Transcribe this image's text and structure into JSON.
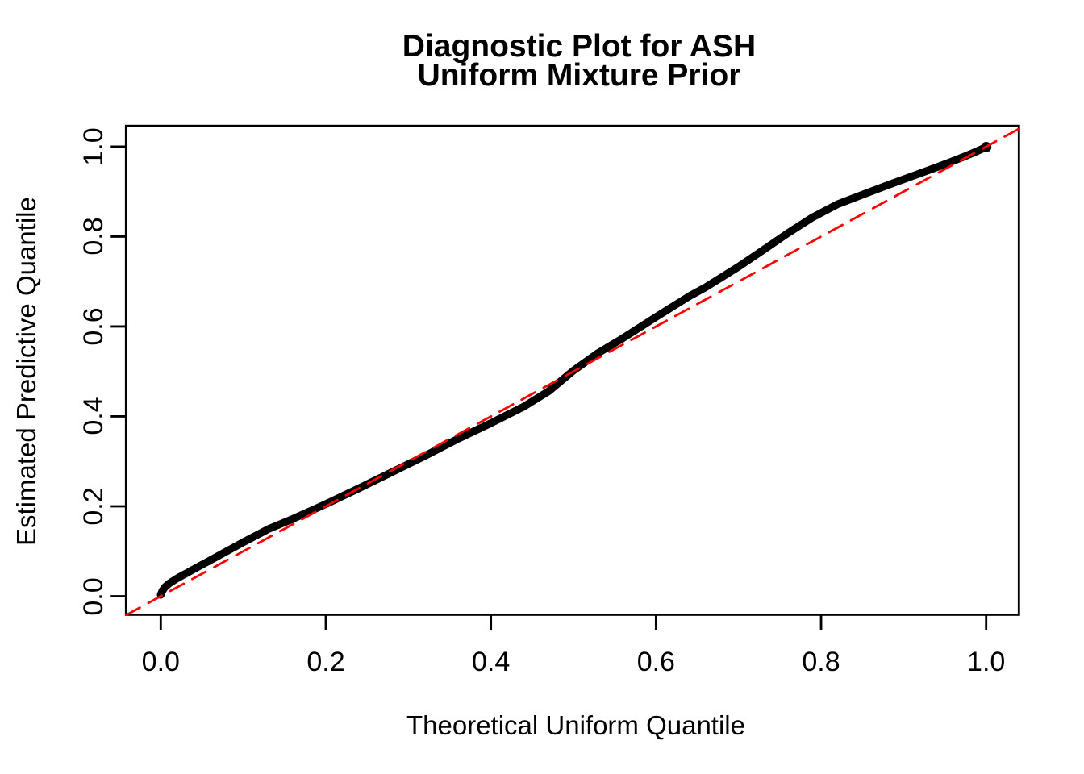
{
  "title": {
    "line1": "Diagnostic Plot for ASH",
    "line2": "Uniform Mixture Prior"
  },
  "colors": {
    "background": "#FFFFFF",
    "axis": "#000000",
    "curve": "#000000",
    "reference": "#FF0000"
  },
  "chart_data": {
    "type": "line",
    "title": "Diagnostic Plot for ASH\nUniform Mixture Prior",
    "xlabel": "Theoretical Uniform Quantile",
    "ylabel": "Estimated Predictive Quantile",
    "xlim": [
      -0.0416,
      1.0416
    ],
    "ylim": [
      -0.0416,
      1.0416
    ],
    "grid": false,
    "legend": "none",
    "x_ticks": {
      "values": [
        0.0,
        0.2,
        0.4,
        0.6,
        0.8,
        1.0
      ],
      "labels": [
        "0.0",
        "0.2",
        "0.4",
        "0.6",
        "0.8",
        "1.0"
      ]
    },
    "y_ticks": {
      "values": [
        0.0,
        0.2,
        0.4,
        0.6,
        0.8,
        1.0
      ],
      "labels": [
        "0.0",
        "0.2",
        "0.4",
        "0.6",
        "0.8",
        "1.0"
      ]
    },
    "series": [
      {
        "name": "estimated-predictive-quantile-curve",
        "type": "line",
        "style": "solid",
        "color": "#000000",
        "width": 9.5,
        "points": [
          [
            0.0,
            0.003
          ],
          [
            0.002,
            0.012
          ],
          [
            0.005,
            0.02
          ],
          [
            0.01,
            0.028
          ],
          [
            0.02,
            0.04
          ],
          [
            0.04,
            0.06
          ],
          [
            0.06,
            0.08
          ],
          [
            0.08,
            0.1
          ],
          [
            0.1,
            0.12
          ],
          [
            0.13,
            0.149
          ],
          [
            0.16,
            0.172
          ],
          [
            0.2,
            0.205
          ],
          [
            0.24,
            0.24
          ],
          [
            0.28,
            0.276
          ],
          [
            0.32,
            0.312
          ],
          [
            0.36,
            0.35
          ],
          [
            0.4,
            0.385
          ],
          [
            0.44,
            0.422
          ],
          [
            0.47,
            0.456
          ],
          [
            0.5,
            0.502
          ],
          [
            0.53,
            0.541
          ],
          [
            0.56,
            0.574
          ],
          [
            0.6,
            0.621
          ],
          [
            0.64,
            0.667
          ],
          [
            0.66,
            0.687
          ],
          [
            0.7,
            0.733
          ],
          [
            0.73,
            0.77
          ],
          [
            0.76,
            0.808
          ],
          [
            0.79,
            0.843
          ],
          [
            0.82,
            0.872
          ],
          [
            0.85,
            0.893
          ],
          [
            0.88,
            0.914
          ],
          [
            0.91,
            0.934
          ],
          [
            0.94,
            0.954
          ],
          [
            0.96,
            0.968
          ],
          [
            0.975,
            0.979
          ],
          [
            0.988,
            0.989
          ],
          [
            1.0,
            0.999
          ]
        ]
      },
      {
        "name": "identity-reference-line",
        "type": "line",
        "style": "dashed",
        "color": "#FF0000",
        "width": 2.8,
        "points": [
          [
            -0.0416,
            -0.0416
          ],
          [
            1.0397,
            1.0397
          ]
        ]
      }
    ]
  }
}
